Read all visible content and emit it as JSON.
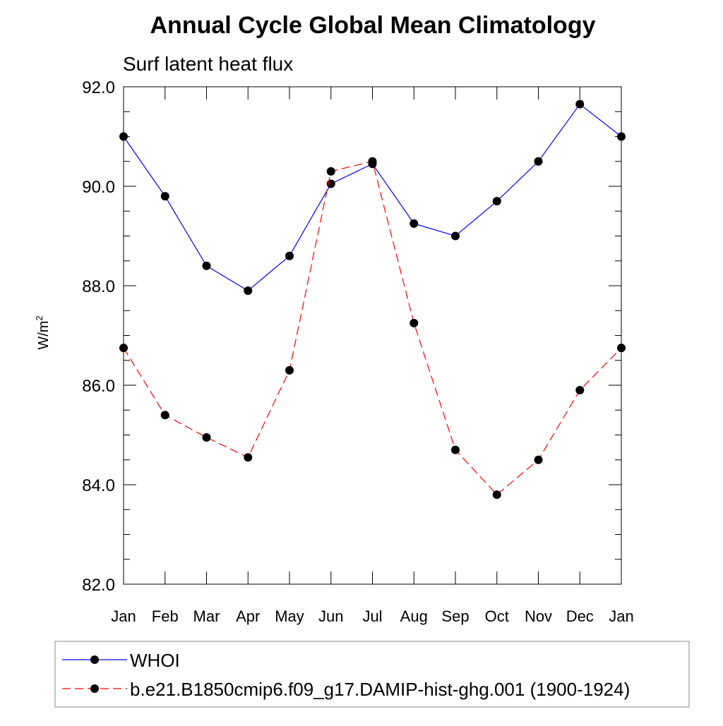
{
  "chart_data": {
    "type": "line",
    "title": "Annual Cycle Global Mean Climatology",
    "subtitle": "Surf latent heat flux",
    "xlabel": "",
    "ylabel": "W/m",
    "ylabel_superscript": "2",
    "categories": [
      "Jan",
      "Feb",
      "Mar",
      "Apr",
      "May",
      "Jun",
      "Jul",
      "Aug",
      "Sep",
      "Oct",
      "Nov",
      "Dec",
      "Jan"
    ],
    "ylim": [
      82,
      92
    ],
    "yticks": [
      "82.0",
      "84.0",
      "86.0",
      "88.0",
      "90.0",
      "92.0"
    ],
    "grid": false,
    "legend_position": "bottom",
    "series": [
      {
        "name": "WHOI",
        "color": "#0000ff",
        "line_style": "solid",
        "marker": "filled-circle",
        "values": [
          91.0,
          89.8,
          88.4,
          87.9,
          88.6,
          90.05,
          90.45,
          89.25,
          89.0,
          89.7,
          90.5,
          91.65,
          91.0
        ]
      },
      {
        "name": "b.e21.B1850cmip6.f09_g17.DAMIP-hist-ghg.001 (1900-1924)",
        "color": "#ff0000",
        "line_style": "dashed",
        "marker": "filled-circle",
        "values": [
          86.75,
          85.4,
          84.95,
          84.55,
          86.3,
          90.3,
          90.5,
          87.25,
          84.7,
          83.8,
          84.5,
          85.9,
          86.75
        ]
      }
    ]
  }
}
